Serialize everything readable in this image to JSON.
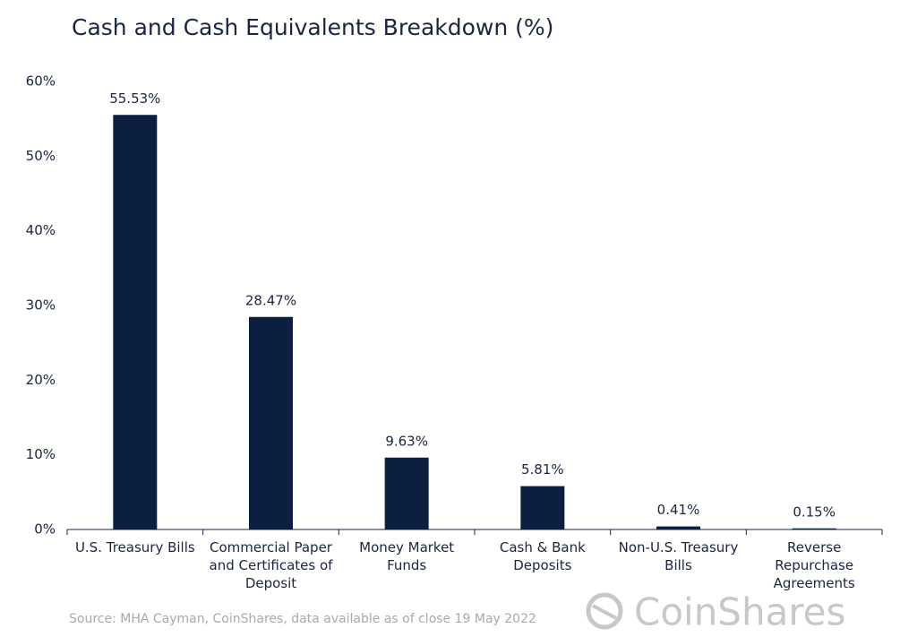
{
  "chart_data": {
    "type": "bar",
    "title": "Cash and Cash Equivalents Breakdown (%)",
    "categories": [
      "U.S. Treasury Bills",
      "Commercial Paper and Certificates of Deposit",
      "Money Market Funds",
      "Cash & Bank Deposits",
      "Non-U.S. Treasury Bills",
      "Reverse Repurchase Agreements"
    ],
    "values": [
      55.53,
      28.47,
      9.63,
      5.81,
      0.41,
      0.15
    ],
    "value_labels": [
      "55.53%",
      "28.47%",
      "9.63%",
      "5.81%",
      "0.41%",
      "0.15%"
    ],
    "color": "#0c1f40",
    "ylim": [
      0,
      60
    ],
    "yticks": [
      {
        "value": 0,
        "label": "0%"
      },
      {
        "value": 10,
        "label": "10%"
      },
      {
        "value": 20,
        "label": "20%"
      },
      {
        "value": 30,
        "label": "30%"
      },
      {
        "value": 40,
        "label": "40%"
      },
      {
        "value": 50,
        "label": "50%"
      },
      {
        "value": 60,
        "label": "60%"
      }
    ],
    "grid": false,
    "source": "Source: MHA Cayman, CoinShares, data available as of close 19 May 2022",
    "logo": "CoinShares"
  }
}
